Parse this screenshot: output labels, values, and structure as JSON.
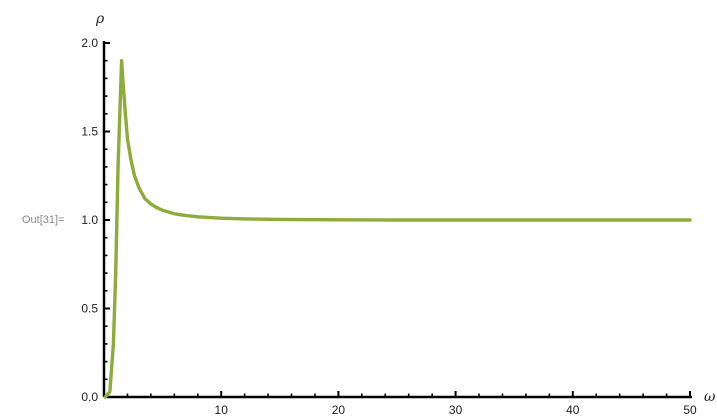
{
  "cell": {
    "out_label": "Out[31]="
  },
  "chart_data": {
    "type": "line",
    "xlabel": "ω",
    "ylabel": "ρ",
    "xlim": [
      0,
      50
    ],
    "ylim": [
      0,
      2.0
    ],
    "x_ticks": [
      10,
      20,
      30,
      40,
      50
    ],
    "x_tick_labels": [
      "10",
      "20",
      "30",
      "40",
      "50"
    ],
    "y_ticks": [
      0,
      0.5,
      1.0,
      1.5,
      2.0
    ],
    "y_tick_labels": [
      "0.0",
      "0.5",
      "1.0",
      "1.5",
      "2.0"
    ],
    "grid": false,
    "line_color": "#8fac3a",
    "series": [
      {
        "x": [
          0.1,
          0.5,
          0.8,
          1.0,
          1.2,
          1.4,
          1.5,
          1.6,
          1.8,
          2.0,
          2.3,
          2.6,
          3.0,
          3.5,
          4.0,
          4.5,
          5.0,
          6.0,
          7.0,
          8.0,
          10.0,
          12.0,
          15.0,
          20.0,
          25.0,
          30.0,
          35.0,
          40.0,
          45.0,
          50.0
        ],
        "y": [
          0.0,
          0.03,
          0.3,
          0.7,
          1.3,
          1.7,
          1.9,
          1.8,
          1.62,
          1.46,
          1.34,
          1.25,
          1.18,
          1.12,
          1.09,
          1.07,
          1.055,
          1.035,
          1.025,
          1.018,
          1.01,
          1.006,
          1.003,
          1.001,
          1.0,
          1.0,
          1.0,
          1.0,
          1.0,
          1.0
        ]
      }
    ]
  }
}
